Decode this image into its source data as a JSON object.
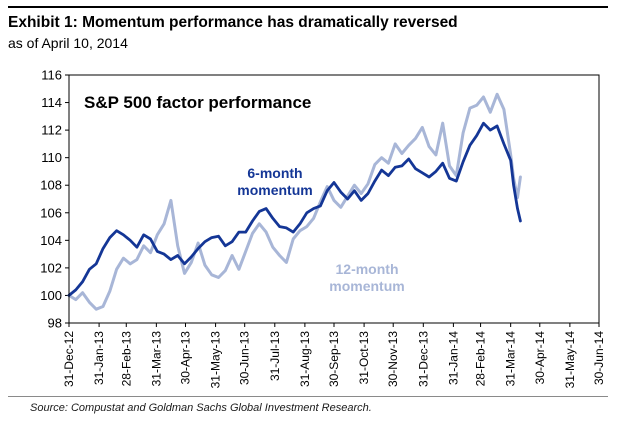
{
  "exhibit": {
    "title": "Exhibit 1: Momentum performance has dramatically reversed",
    "subtitle": "as of April 10, 2014"
  },
  "source": "Source: Compustat and Goldman Sachs Global Investment Research.",
  "colors": {
    "six_month": "#143696",
    "twelve_month": "#a8b6d7",
    "frame": "#000000",
    "rule": "#000000"
  },
  "chart_data": {
    "type": "line",
    "title": "S&P 500 factor performance",
    "xlabel": "",
    "ylabel": "",
    "ylim": [
      98,
      116
    ],
    "yticks": [
      98,
      100,
      102,
      104,
      106,
      108,
      110,
      112,
      114,
      116
    ],
    "xlim": [
      "2012-12-31",
      "2014-06-30"
    ],
    "xticks": [
      "31-Dec-12",
      "31-Jan-13",
      "28-Feb-13",
      "31-Mar-13",
      "30-Apr-13",
      "31-May-13",
      "30-Jun-13",
      "31-Jul-13",
      "31-Aug-13",
      "30-Sep-13",
      "31-Oct-13",
      "30-Nov-13",
      "31-Dec-13",
      "31-Jan-14",
      "28-Feb-14",
      "31-Mar-14",
      "30-Apr-14",
      "31-May-14",
      "30-Jun-14"
    ],
    "grid": false,
    "annotations": [
      {
        "series": "six_month",
        "lines": [
          "6-month",
          "momentum"
        ]
      },
      {
        "series": "twelve_month",
        "lines": [
          "12-month",
          "momentum"
        ]
      }
    ],
    "series": [
      {
        "key": "six_month",
        "color": "#143696",
        "points": [
          [
            "2012-12-31",
            100.0
          ],
          [
            "2013-01-07",
            100.4
          ],
          [
            "2013-01-14",
            101.0
          ],
          [
            "2013-01-21",
            101.9
          ],
          [
            "2013-01-28",
            102.3
          ],
          [
            "2013-02-04",
            103.4
          ],
          [
            "2013-02-11",
            104.2
          ],
          [
            "2013-02-18",
            104.7
          ],
          [
            "2013-02-25",
            104.4
          ],
          [
            "2013-03-04",
            104.0
          ],
          [
            "2013-03-11",
            103.5
          ],
          [
            "2013-03-18",
            104.4
          ],
          [
            "2013-03-25",
            104.1
          ],
          [
            "2013-04-01",
            103.2
          ],
          [
            "2013-04-08",
            103.0
          ],
          [
            "2013-04-15",
            102.6
          ],
          [
            "2013-04-22",
            102.9
          ],
          [
            "2013-04-29",
            102.3
          ],
          [
            "2013-05-06",
            102.8
          ],
          [
            "2013-05-13",
            103.4
          ],
          [
            "2013-05-20",
            103.9
          ],
          [
            "2013-05-27",
            104.2
          ],
          [
            "2013-06-03",
            104.3
          ],
          [
            "2013-06-10",
            103.6
          ],
          [
            "2013-06-17",
            103.9
          ],
          [
            "2013-06-24",
            104.6
          ],
          [
            "2013-07-01",
            104.6
          ],
          [
            "2013-07-08",
            105.4
          ],
          [
            "2013-07-15",
            106.1
          ],
          [
            "2013-07-22",
            106.3
          ],
          [
            "2013-07-29",
            105.6
          ],
          [
            "2013-08-05",
            105.0
          ],
          [
            "2013-08-12",
            104.9
          ],
          [
            "2013-08-19",
            104.6
          ],
          [
            "2013-08-26",
            105.2
          ],
          [
            "2013-09-02",
            106.0
          ],
          [
            "2013-09-09",
            106.3
          ],
          [
            "2013-09-16",
            106.5
          ],
          [
            "2013-09-23",
            107.6
          ],
          [
            "2013-09-30",
            108.2
          ],
          [
            "2013-10-07",
            107.5
          ],
          [
            "2013-10-14",
            107.0
          ],
          [
            "2013-10-21",
            107.6
          ],
          [
            "2013-10-28",
            106.9
          ],
          [
            "2013-11-04",
            107.4
          ],
          [
            "2013-11-11",
            108.3
          ],
          [
            "2013-11-18",
            109.1
          ],
          [
            "2013-11-25",
            108.7
          ],
          [
            "2013-12-02",
            109.3
          ],
          [
            "2013-12-09",
            109.4
          ],
          [
            "2013-12-16",
            109.9
          ],
          [
            "2013-12-23",
            109.2
          ],
          [
            "2013-12-30",
            108.9
          ],
          [
            "2014-01-06",
            108.6
          ],
          [
            "2014-01-13",
            109.0
          ],
          [
            "2014-01-20",
            109.6
          ],
          [
            "2014-01-27",
            108.5
          ],
          [
            "2014-02-03",
            108.3
          ],
          [
            "2014-02-10",
            109.7
          ],
          [
            "2014-02-17",
            110.9
          ],
          [
            "2014-02-24",
            111.6
          ],
          [
            "2014-03-03",
            112.5
          ],
          [
            "2014-03-10",
            112.0
          ],
          [
            "2014-03-17",
            112.3
          ],
          [
            "2014-03-24",
            111.0
          ],
          [
            "2014-03-31",
            109.8
          ],
          [
            "2014-04-03",
            108.0
          ],
          [
            "2014-04-07",
            106.3
          ],
          [
            "2014-04-10",
            105.4
          ]
        ]
      },
      {
        "key": "twelve_month",
        "color": "#a8b6d7",
        "points": [
          [
            "2012-12-31",
            100.0
          ],
          [
            "2013-01-07",
            99.7
          ],
          [
            "2013-01-14",
            100.2
          ],
          [
            "2013-01-21",
            99.5
          ],
          [
            "2013-01-28",
            99.0
          ],
          [
            "2013-02-04",
            99.2
          ],
          [
            "2013-02-11",
            100.3
          ],
          [
            "2013-02-18",
            101.9
          ],
          [
            "2013-02-25",
            102.7
          ],
          [
            "2013-03-04",
            102.3
          ],
          [
            "2013-03-11",
            102.6
          ],
          [
            "2013-03-18",
            103.6
          ],
          [
            "2013-03-25",
            103.1
          ],
          [
            "2013-04-01",
            104.4
          ],
          [
            "2013-04-08",
            105.2
          ],
          [
            "2013-04-15",
            106.9
          ],
          [
            "2013-04-22",
            103.6
          ],
          [
            "2013-04-29",
            101.6
          ],
          [
            "2013-05-06",
            102.4
          ],
          [
            "2013-05-13",
            103.8
          ],
          [
            "2013-05-20",
            102.2
          ],
          [
            "2013-05-27",
            101.5
          ],
          [
            "2013-06-03",
            101.3
          ],
          [
            "2013-06-10",
            101.8
          ],
          [
            "2013-06-17",
            102.9
          ],
          [
            "2013-06-24",
            101.9
          ],
          [
            "2013-07-01",
            103.2
          ],
          [
            "2013-07-08",
            104.5
          ],
          [
            "2013-07-15",
            105.2
          ],
          [
            "2013-07-22",
            104.6
          ],
          [
            "2013-07-29",
            103.5
          ],
          [
            "2013-08-05",
            102.9
          ],
          [
            "2013-08-12",
            102.4
          ],
          [
            "2013-08-19",
            104.1
          ],
          [
            "2013-08-26",
            104.7
          ],
          [
            "2013-09-02",
            105.0
          ],
          [
            "2013-09-09",
            105.6
          ],
          [
            "2013-09-16",
            106.8
          ],
          [
            "2013-09-23",
            107.9
          ],
          [
            "2013-09-30",
            106.9
          ],
          [
            "2013-10-07",
            106.4
          ],
          [
            "2013-10-14",
            107.2
          ],
          [
            "2013-10-21",
            108.0
          ],
          [
            "2013-10-28",
            107.4
          ],
          [
            "2013-11-04",
            108.1
          ],
          [
            "2013-11-11",
            109.5
          ],
          [
            "2013-11-18",
            110.0
          ],
          [
            "2013-11-25",
            109.6
          ],
          [
            "2013-12-02",
            111.0
          ],
          [
            "2013-12-09",
            110.3
          ],
          [
            "2013-12-16",
            110.9
          ],
          [
            "2013-12-23",
            111.4
          ],
          [
            "2013-12-30",
            112.2
          ],
          [
            "2014-01-06",
            110.8
          ],
          [
            "2014-01-13",
            110.2
          ],
          [
            "2014-01-20",
            112.5
          ],
          [
            "2014-01-27",
            109.4
          ],
          [
            "2014-02-03",
            108.7
          ],
          [
            "2014-02-10",
            111.8
          ],
          [
            "2014-02-17",
            113.6
          ],
          [
            "2014-02-24",
            113.8
          ],
          [
            "2014-03-03",
            114.4
          ],
          [
            "2014-03-10",
            113.3
          ],
          [
            "2014-03-17",
            114.6
          ],
          [
            "2014-03-24",
            113.5
          ],
          [
            "2014-03-31",
            110.2
          ],
          [
            "2014-04-03",
            108.5
          ],
          [
            "2014-04-07",
            107.1
          ],
          [
            "2014-04-10",
            108.6
          ]
        ]
      }
    ]
  }
}
